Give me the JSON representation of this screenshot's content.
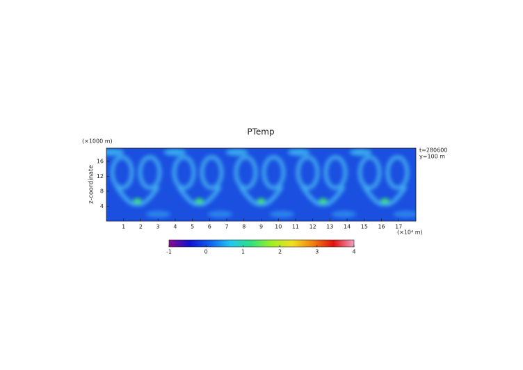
{
  "chart_data": {
    "type": "heatmap",
    "title": "PTemp",
    "ylabel": "z-coordinate",
    "yunit": "(×1000 m)",
    "xunit": "(×10⁴ m)",
    "annotations": [
      "t=280600",
      "y=100 m"
    ],
    "xlim": [
      0,
      18
    ],
    "xticks": [
      1,
      2,
      3,
      4,
      5,
      6,
      7,
      8,
      9,
      10,
      11,
      12,
      13,
      14,
      15,
      16,
      17
    ],
    "ylim": [
      0,
      19.5
    ],
    "yticks": [
      4,
      8,
      12,
      16
    ],
    "clim": [
      -1,
      4
    ],
    "cticks": [
      -1,
      0,
      1,
      2,
      3,
      4
    ],
    "colormap": [
      "#8a0a8a",
      "#1010d0",
      "#1060f0",
      "#20c8f0",
      "#30e080",
      "#a0f020",
      "#f0e020",
      "#f08010",
      "#e01010",
      "#f0a0c0"
    ]
  }
}
